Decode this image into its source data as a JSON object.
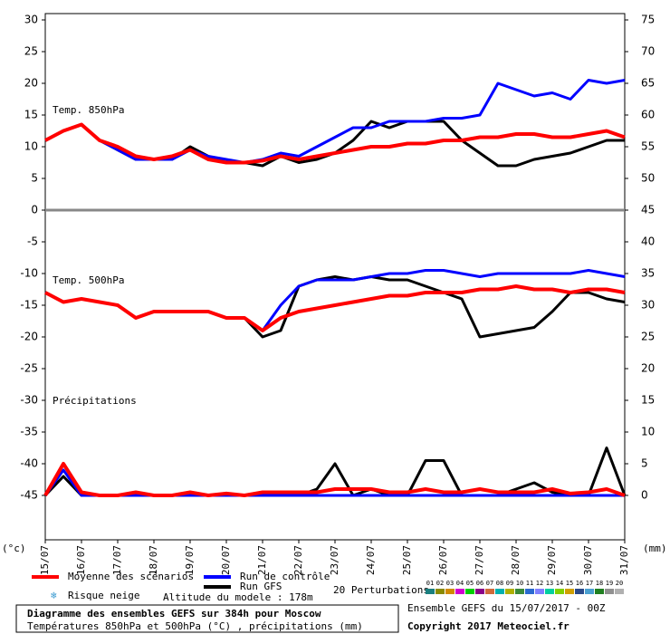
{
  "chart_data": {
    "type": "line",
    "title": "Diagramme des ensembles GEFS sur 384h pour Moscow",
    "subtitle": "Températures 850hPa et 500hPa (°C) , précipitations (mm)",
    "run_label": "Ensemble GEFS du 15/07/2017 - 00Z",
    "copyright": "Copyright 2017 Meteociel.fr",
    "panel_labels": [
      "Temp. 850hPa",
      "Temp. 500hPa",
      "Précipitations"
    ],
    "y_label": "(°c)",
    "y2_label": "(mm)",
    "snow_label": "Risque neige",
    "altitude_label": "Altitude du modele : 178m",
    "perturbations_label": "20 Perturbations",
    "perturbations": [
      {
        "name": "01",
        "color": "#1a7f7f"
      },
      {
        "name": "02",
        "color": "#8a8a00"
      },
      {
        "name": "03",
        "color": "#d08a00"
      },
      {
        "name": "04",
        "color": "#d000d0"
      },
      {
        "name": "05",
        "color": "#00d000"
      },
      {
        "name": "06",
        "color": "#8a008a"
      },
      {
        "name": "07",
        "color": "#d06a3a"
      },
      {
        "name": "08",
        "color": "#00b0b0"
      },
      {
        "name": "09",
        "color": "#b0b000"
      },
      {
        "name": "10",
        "color": "#3a8a3a"
      },
      {
        "name": "11",
        "color": "#2a6ad0"
      },
      {
        "name": "12",
        "color": "#8080ff"
      },
      {
        "name": "13",
        "color": "#00d0a0"
      },
      {
        "name": "14",
        "color": "#80d000"
      },
      {
        "name": "15",
        "color": "#d0a000"
      },
      {
        "name": "16",
        "color": "#2a4a8a"
      },
      {
        "name": "17",
        "color": "#4aa0d0"
      },
      {
        "name": "18",
        "color": "#208020"
      },
      {
        "name": "19",
        "color": "#909090"
      },
      {
        "name": "20",
        "color": "#b0b0b0"
      }
    ],
    "x": [
      0,
      0.5,
      1,
      1.5,
      2,
      2.5,
      3,
      3.5,
      4,
      4.5,
      5,
      5.5,
      6,
      6.5,
      7,
      7.5,
      8,
      8.5,
      9,
      9.5,
      10,
      10.5,
      11,
      11.5,
      12,
      12.5,
      13,
      13.5,
      14,
      14.5,
      15,
      15.5,
      16
    ],
    "xlim": [
      0,
      16
    ],
    "xticks": [
      {
        "value": 0,
        "label": "15/07"
      },
      {
        "value": 1,
        "label": "16/07"
      },
      {
        "value": 2,
        "label": "17/07"
      },
      {
        "value": 3,
        "label": "18/07"
      },
      {
        "value": 4,
        "label": "19/07"
      },
      {
        "value": 5,
        "label": "20/07"
      },
      {
        "value": 6,
        "label": "21/07"
      },
      {
        "value": 7,
        "label": "22/07"
      },
      {
        "value": 8,
        "label": "23/07"
      },
      {
        "value": 9,
        "label": "24/07"
      },
      {
        "value": 10,
        "label": "25/07"
      },
      {
        "value": 11,
        "label": "26/07"
      },
      {
        "value": 12,
        "label": "27/07"
      },
      {
        "value": 13,
        "label": "28/07"
      },
      {
        "value": 14,
        "label": "29/07"
      },
      {
        "value": 15,
        "label": "30/07"
      },
      {
        "value": 16,
        "label": "31/07"
      }
    ],
    "ylim": [
      -52,
      31
    ],
    "yticks": [
      30,
      25,
      20,
      15,
      10,
      5,
      0,
      -5,
      -10,
      -15,
      -20,
      -25,
      -30,
      -35,
      -40,
      -45
    ],
    "y2lim": [
      -7,
      76
    ],
    "y2ticks": [
      75,
      70,
      65,
      60,
      55,
      50,
      45,
      40,
      35,
      30,
      25,
      20,
      15,
      10,
      5,
      0
    ],
    "series": [
      {
        "name": "Moyenne des scénarios",
        "color": "#ff0000",
        "temp850": [
          11,
          12.5,
          13.5,
          11,
          10,
          8.5,
          8,
          8.5,
          9.5,
          8,
          7.5,
          7.5,
          7.8,
          8.5,
          8,
          8.5,
          9,
          9.5,
          10,
          10,
          10.5,
          10.5,
          11,
          11,
          11.5,
          11.5,
          12,
          12,
          11.5,
          11.5,
          12,
          12.5,
          11.5
        ],
        "temp500": [
          -13,
          -14.5,
          -14,
          -14.5,
          -15,
          -17,
          -16,
          -16,
          -16,
          -16,
          -17,
          -17,
          -19,
          -17,
          -16,
          -15.5,
          -15,
          -14.5,
          -14,
          -13.5,
          -13.5,
          -13,
          -13,
          -13,
          -12.5,
          -12.5,
          -12,
          -12.5,
          -12.5,
          -13,
          -12.5,
          -12.5,
          -13
        ],
        "precip": [
          0,
          5,
          0.5,
          0,
          0,
          0.5,
          0,
          0,
          0.5,
          0,
          0.3,
          0,
          0.5,
          0.5,
          0.5,
          0.5,
          1,
          1,
          1,
          0.5,
          0.5,
          1,
          0.5,
          0.5,
          1,
          0.5,
          0.5,
          0.5,
          1,
          0.3,
          0.5,
          1,
          0
        ]
      },
      {
        "name": "Run de contrôle",
        "color": "#0000ff",
        "temp850": [
          11,
          12.5,
          13.5,
          11,
          9.5,
          8,
          8,
          8,
          9.5,
          8.5,
          8,
          7.5,
          8,
          9,
          8.5,
          10,
          11.5,
          13,
          13,
          14,
          14,
          14,
          14.5,
          14.5,
          15,
          20,
          19,
          18,
          18.5,
          17.5,
          20.5,
          20,
          20.5
        ],
        "temp500": [
          -13,
          -14.5,
          -14,
          -14.5,
          -15,
          -17,
          -16,
          -16,
          -16,
          -16,
          -17,
          -17,
          -19,
          -15,
          -12,
          -11,
          -11,
          -11,
          -10.5,
          -10,
          -10,
          -9.5,
          -9.5,
          -10,
          -10.5,
          -10,
          -10,
          -10,
          -10,
          -10,
          -9.5,
          -10,
          -10.5
        ],
        "precip": [
          0,
          4,
          0,
          0,
          0,
          0,
          0,
          0,
          0,
          0,
          0,
          0,
          0,
          0,
          0,
          0,
          0,
          0,
          0,
          0,
          0,
          0,
          0,
          0,
          0,
          0,
          0,
          0,
          0,
          0,
          0,
          0,
          0
        ]
      },
      {
        "name": "Run GFS",
        "color": "#000000",
        "temp850": [
          11,
          12.5,
          13.5,
          11,
          9.5,
          8,
          8,
          8,
          10,
          8.5,
          7.5,
          7.5,
          7,
          8.5,
          7.5,
          8,
          9,
          11,
          14,
          13,
          14,
          14,
          14,
          11,
          9,
          7,
          7,
          8,
          8.5,
          9,
          10,
          11,
          11
        ],
        "temp500": [
          -13,
          -14.5,
          -14,
          -14.5,
          -15,
          -17,
          -16,
          -16,
          -16,
          -16,
          -17,
          -17,
          -20,
          -19,
          -12,
          -11,
          -10.5,
          -11,
          -10.5,
          -11,
          -11,
          -12,
          -13,
          -14,
          -20,
          -19.5,
          -19,
          -18.5,
          -16,
          -13,
          -13,
          -14,
          -14.5
        ],
        "precip": [
          0,
          3,
          0,
          0,
          0,
          0,
          0,
          0,
          0,
          0,
          0,
          0,
          0.5,
          0,
          0,
          1,
          5,
          0,
          1,
          0,
          0,
          5.5,
          5.5,
          0,
          0,
          0,
          1,
          2,
          0.5,
          0,
          0,
          7.5,
          0
        ]
      }
    ]
  }
}
